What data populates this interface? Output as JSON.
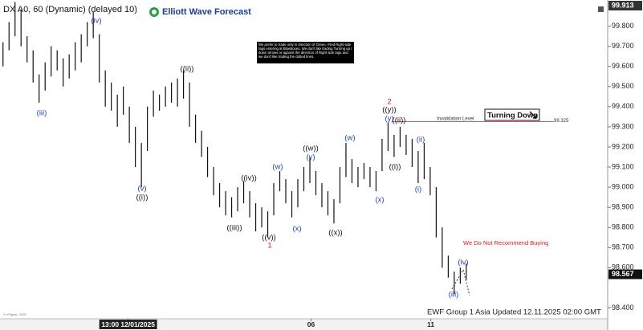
{
  "chart_data": {
    "type": "hilo",
    "title": "DX A0, 60 (Dynamic) (delayed 10)",
    "logo": "Elliott Wave Forecast",
    "note": "We prefer to trade only in direction of Green / Red Right side tags entering at BlueBoxes. We don't like trading Turning up / down arrows or against the direction of Right side tags and we don't like trading the dotted lines.",
    "invalidation": {
      "label": "Invalidation Level",
      "value": 99.325
    },
    "turning": "Turning Down",
    "warning": "We Do Not Recommend Buying",
    "footer": "EWF Group 1 Asia Updated 12.11.2025 02:00 GMT",
    "copyright": "© eSignal, 2025",
    "top_price": 99.913,
    "last_price": 98.567,
    "color": "#111111",
    "high": [
      99.72,
      99.82,
      99.92,
      99.88,
      99.75,
      99.68,
      99.56,
      99.62,
      99.7,
      99.68,
      99.64,
      99.66,
      99.72,
      99.76,
      99.82,
      99.87,
      99.76,
      99.58,
      99.52,
      99.46,
      99.5,
      99.4,
      99.3,
      99.22,
      99.4,
      99.48,
      99.46,
      99.5,
      99.52,
      99.54,
      99.58,
      99.52,
      99.36,
      99.28,
      99.2,
      99.1,
      99.02,
      98.98,
      98.95,
      99.0,
      99.03,
      98.98,
      98.92,
      98.9,
      98.88,
      99.02,
      99.08,
      99.04,
      98.98,
      99.04,
      99.1,
      99.15,
      99.08,
      99.02,
      98.98,
      98.94,
      99.1,
      99.22,
      99.14,
      99.1,
      99.12,
      99.1,
      99.08,
      99.24,
      99.32,
      99.26,
      99.3,
      99.26,
      99.24,
      99.18,
      99.22,
      99.1,
      99.0,
      98.8,
      98.66,
      98.58,
      98.6,
      98.62
    ],
    "low": [
      99.6,
      99.68,
      99.75,
      99.7,
      99.62,
      99.52,
      99.42,
      99.48,
      99.55,
      99.58,
      99.5,
      99.54,
      99.58,
      99.62,
      99.7,
      99.74,
      99.52,
      99.4,
      99.38,
      99.3,
      99.36,
      99.22,
      99.1,
      99.0,
      99.18,
      99.35,
      99.38,
      99.4,
      99.42,
      99.4,
      99.44,
      99.3,
      99.22,
      99.15,
      99.05,
      98.96,
      98.9,
      98.86,
      98.85,
      98.88,
      98.92,
      98.85,
      98.78,
      98.8,
      98.75,
      98.86,
      98.98,
      98.92,
      98.85,
      98.9,
      98.98,
      99.02,
      98.96,
      98.9,
      98.86,
      98.82,
      98.92,
      99.05,
      99.02,
      99.0,
      99.04,
      99.0,
      98.98,
      99.08,
      99.18,
      99.15,
      99.2,
      99.16,
      99.1,
      99.02,
      99.04,
      98.96,
      98.75,
      98.6,
      98.55,
      98.47,
      98.52,
      98.54
    ],
    "xlim": [
      -0.5,
      100.5
    ],
    "xticks": [
      {
        "value": 20.8,
        "label": "13:00 12/01/2025"
      },
      {
        "value": 51.2,
        "label": "06"
      },
      {
        "value": 71.1,
        "label": "11"
      }
    ],
    "ylim": [
      98.35,
      99.93
    ],
    "yticks": [
      {
        "value": 98.4,
        "label": "98.400"
      },
      {
        "value": 98.6,
        "label": "98.600"
      },
      {
        "value": 98.7,
        "label": "98.700"
      },
      {
        "value": 98.8,
        "label": "98.800"
      },
      {
        "value": 98.9,
        "label": "98.900"
      },
      {
        "value": 99.0,
        "label": "99.000"
      },
      {
        "value": 99.1,
        "label": "99.100"
      },
      {
        "value": 99.2,
        "label": "99.200"
      },
      {
        "value": 99.3,
        "label": "99.300"
      },
      {
        "value": 99.4,
        "label": "99.400"
      },
      {
        "value": 99.5,
        "label": "99.500"
      },
      {
        "value": 99.6,
        "label": "99.600"
      },
      {
        "value": 99.7,
        "label": "99.700"
      },
      {
        "value": 99.8,
        "label": "99.800"
      }
    ],
    "wave_labels": [
      {
        "text": "(iii)",
        "color": "#1f3fb4"
      },
      {
        "text": "(iv)",
        "color": "#1f3fb4"
      },
      {
        "text": "(v)",
        "color": "#1f3fb4"
      },
      {
        "text": "((i))",
        "color": "#111111"
      },
      {
        "text": "((ii))",
        "color": "#111111"
      },
      {
        "text": "((iii))",
        "color": "#111111"
      },
      {
        "text": "((iv))",
        "color": "#111111"
      },
      {
        "text": "((v))",
        "color": "#111111"
      },
      {
        "text": "1",
        "color": "#d41c1c"
      },
      {
        "text": "(w)",
        "color": "#1f3fb4"
      },
      {
        "text": "(x)",
        "color": "#1f3fb4"
      },
      {
        "text": "((w))",
        "color": "#111111"
      },
      {
        "text": "(y)",
        "color": "#1f3fb4"
      },
      {
        "text": "((x))",
        "color": "#111111"
      },
      {
        "text": "(w)",
        "color": "#1f3fb4"
      },
      {
        "text": "(x)",
        "color": "#1f3fb4"
      },
      {
        "text": "2",
        "color": "#d41c1c"
      },
      {
        "text": "((y))",
        "color": "#111111"
      },
      {
        "text": "(y)",
        "color": "#1f3fb4"
      },
      {
        "text": "((ii))",
        "color": "#111111"
      },
      {
        "text": "((i))",
        "color": "#111111"
      },
      {
        "text": "(ii)",
        "color": "#1f3fb4"
      },
      {
        "text": "(i)",
        "color": "#1f3fb4"
      },
      {
        "text": "(iii)",
        "color": "#1f3fb4"
      },
      {
        "text": "(iv)",
        "color": "#1f3fb4"
      }
    ]
  }
}
